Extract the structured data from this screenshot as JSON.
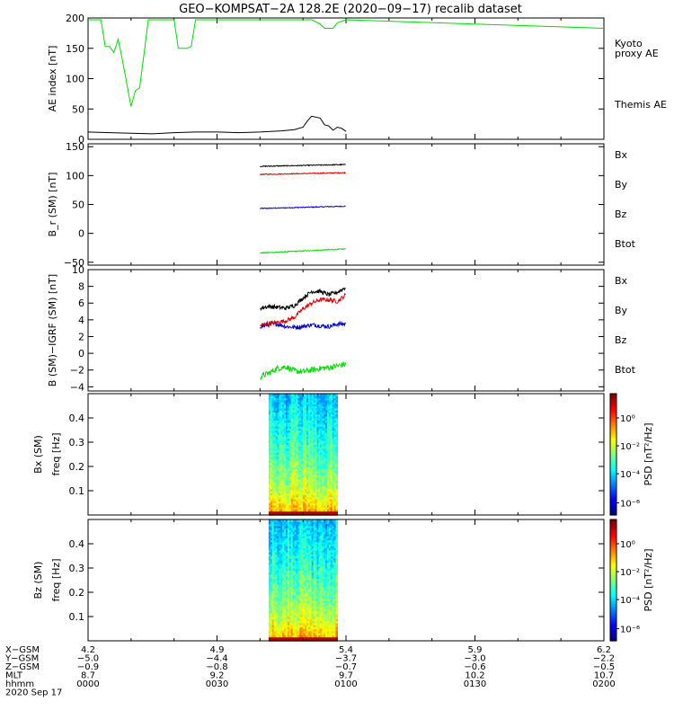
{
  "title": "GEO−KOMPSAT−2A 128.2E (2020−09−17) recalib dataset",
  "colors": {
    "black": "#000000",
    "green": "#00dd00",
    "red": "#dd0000",
    "blue": "#0000cc"
  },
  "chart_data": [
    {
      "type": "line",
      "panel": "ae",
      "ylabel": "AE index [nT]",
      "ylim": [
        0,
        200
      ],
      "yticks": [
        0,
        50,
        100,
        150,
        200
      ],
      "series": [
        {
          "name": "Kyoto proxy AE",
          "label_lines": [
            "Kyoto",
            "proxy AE"
          ],
          "color": "#00dd00",
          "x": [
            0,
            3,
            4,
            5,
            6,
            7,
            8,
            10,
            11,
            12,
            13,
            14,
            15,
            16,
            17,
            18,
            20,
            21,
            22,
            23,
            24,
            25,
            27,
            28,
            35,
            40,
            48,
            52,
            54,
            55,
            57,
            58,
            60,
            120
          ],
          "values": [
            197,
            197,
            153,
            153,
            143,
            165,
            130,
            54,
            80,
            85,
            140,
            197,
            197,
            197,
            197,
            197,
            197,
            150,
            150,
            150,
            153,
            197,
            197,
            197,
            197,
            197,
            197,
            197,
            190,
            183,
            183,
            192,
            197,
            183
          ]
        },
        {
          "name": "Themis AE",
          "label_lines": [
            "Themis AE"
          ],
          "color": "#000000",
          "x": [
            0,
            5,
            10,
            15,
            20,
            25,
            30,
            35,
            40,
            45,
            48,
            50,
            51,
            52,
            54,
            55,
            56,
            57,
            58,
            59,
            60
          ],
          "values": [
            12,
            11,
            10,
            9,
            11,
            12,
            12,
            11,
            12,
            14,
            16,
            20,
            30,
            38,
            35,
            24,
            22,
            15,
            20,
            18,
            13
          ]
        }
      ]
    },
    {
      "type": "line",
      "panel": "b",
      "ylabel": "B_r (SM) [nT]",
      "ylim": [
        -55,
        155
      ],
      "yticks": [
        -50,
        0,
        50,
        100,
        150
      ],
      "series": [
        {
          "name": "Bx",
          "color": "#0000cc",
          "x": [
            40,
            60
          ],
          "values": [
            43,
            47
          ]
        },
        {
          "name": "By",
          "color": "#00dd00",
          "x": [
            40,
            60
          ],
          "values": [
            -34,
            -27
          ]
        },
        {
          "name": "Bz",
          "color": "#dd0000",
          "x": [
            40,
            60
          ],
          "values": [
            102,
            105
          ]
        },
        {
          "name": "Btot",
          "color": "#000000",
          "x": [
            40,
            60
          ],
          "values": [
            116,
            119
          ]
        }
      ]
    },
    {
      "type": "line",
      "panel": "db",
      "ylabel": "B (SM)−IGRF (SM) [nT]",
      "ylim": [
        -4.5,
        10
      ],
      "yticks": [
        -4,
        -2,
        0,
        2,
        4,
        6,
        8,
        10
      ],
      "series": [
        {
          "name": "Bx",
          "color": "#0000cc",
          "x": [
            40,
            42,
            44,
            46,
            48,
            50,
            52,
            54,
            56,
            58,
            60
          ],
          "values": [
            3.2,
            3.4,
            3.5,
            3.2,
            3.1,
            3.2,
            3.4,
            3.3,
            3.2,
            3.5,
            3.5
          ]
        },
        {
          "name": "By",
          "color": "#00dd00",
          "x": [
            40,
            42,
            44,
            46,
            48,
            50,
            52,
            54,
            56,
            58,
            60
          ],
          "values": [
            -2.8,
            -2.4,
            -1.8,
            -1.6,
            -2.1,
            -2.2,
            -2.0,
            -1.8,
            -1.7,
            -1.5,
            -1.3
          ]
        },
        {
          "name": "Bz",
          "color": "#dd0000",
          "x": [
            40,
            42,
            44,
            46,
            48,
            50,
            52,
            54,
            56,
            58,
            60
          ],
          "values": [
            3.3,
            3.6,
            3.7,
            3.9,
            4.3,
            5.3,
            6.0,
            6.4,
            6.4,
            6.2,
            7.0
          ]
        },
        {
          "name": "Btot",
          "color": "#000000",
          "x": [
            40,
            42,
            44,
            46,
            48,
            50,
            52,
            54,
            56,
            58,
            60
          ],
          "values": [
            5.4,
            5.6,
            5.5,
            5.4,
            5.7,
            6.6,
            7.4,
            7.4,
            7.0,
            7.3,
            7.9
          ]
        }
      ]
    },
    {
      "type": "heatmap",
      "panel": "bx-spec",
      "ylabel_lines": [
        "Bx (SM)",
        "freq [Hz]"
      ],
      "ylim": [
        0,
        0.5
      ],
      "yticks": [
        0.1,
        0.2,
        0.3,
        0.4
      ],
      "x_range": [
        42,
        58
      ],
      "colorbar_label": "PSD [nT²/Hz]",
      "colorbar_ticks": [
        "10⁰",
        "10⁻²",
        "10⁻⁴",
        "10⁻⁶"
      ]
    },
    {
      "type": "heatmap",
      "panel": "bz-spec",
      "ylabel_lines": [
        "Bz (SM)",
        "freq [Hz]"
      ],
      "ylim": [
        0,
        0.5
      ],
      "yticks": [
        0.1,
        0.2,
        0.3,
        0.4
      ],
      "x_range": [
        42,
        58
      ],
      "colorbar_label": "PSD [nT²/Hz]",
      "colorbar_ticks": [
        "10⁰",
        "10⁻²",
        "10⁻⁴",
        "10⁻⁶"
      ]
    }
  ],
  "axis_table": {
    "rows": [
      {
        "label": "X−GSM",
        "values": [
          "4.2",
          "4.9",
          "5.4",
          "5.9",
          "6.2"
        ]
      },
      {
        "label": "Y−GSM",
        "values": [
          "−5.0",
          "−4.4",
          "−3.7",
          "−3.0",
          "−2.2"
        ]
      },
      {
        "label": "Z−GSM",
        "values": [
          "−0.9",
          "−0.8",
          "−0.7",
          "−0.6",
          "−0.5"
        ]
      },
      {
        "label": "MLT",
        "values": [
          "8.7",
          "9.2",
          "9.7",
          "10.2",
          "10.7"
        ]
      },
      {
        "label": "hhmm",
        "values": [
          "0000",
          "0030",
          "0100",
          "0130",
          "0200"
        ]
      }
    ],
    "date": "2020 Sep 17",
    "tick_minutes": [
      0,
      30,
      60,
      90,
      120
    ]
  }
}
